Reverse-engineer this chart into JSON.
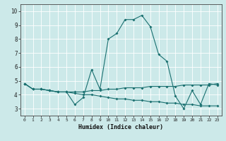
{
  "xlabel": "Humidex (Indice chaleur)",
  "x_ticks": [
    0,
    1,
    2,
    3,
    4,
    5,
    6,
    7,
    8,
    9,
    10,
    11,
    12,
    13,
    14,
    15,
    16,
    17,
    18,
    19,
    20,
    21,
    22,
    23
  ],
  "ylim": [
    2.5,
    10.5
  ],
  "xlim": [
    -0.5,
    23.5
  ],
  "background_color": "#cce9e9",
  "line_color": "#1a7070",
  "grid_color": "#ffffff",
  "lines": [
    {
      "x": [
        0,
        1,
        2,
        3,
        4,
        5,
        6,
        7,
        8,
        9,
        10,
        11,
        12,
        13,
        14,
        15,
        16,
        17,
        18,
        19,
        20,
        21,
        22,
        23
      ],
      "y": [
        4.8,
        4.4,
        4.4,
        4.3,
        4.2,
        4.2,
        3.3,
        3.8,
        5.8,
        4.4,
        8.0,
        8.4,
        9.4,
        9.4,
        9.7,
        8.9,
        6.9,
        6.4,
        3.9,
        3.0,
        4.3,
        3.3,
        4.8,
        4.7
      ]
    },
    {
      "x": [
        0,
        1,
        2,
        3,
        4,
        5,
        6,
        7,
        8,
        9,
        10,
        11,
        12,
        13,
        14,
        15,
        16,
        17,
        18,
        19,
        20,
        21,
        22,
        23
      ],
      "y": [
        4.8,
        4.4,
        4.4,
        4.3,
        4.2,
        4.2,
        4.2,
        4.2,
        4.3,
        4.3,
        4.4,
        4.4,
        4.5,
        4.5,
        4.5,
        4.6,
        4.6,
        4.6,
        4.6,
        4.7,
        4.7,
        4.7,
        4.7,
        4.8
      ]
    },
    {
      "x": [
        0,
        1,
        2,
        3,
        4,
        5,
        6,
        7,
        8,
        9,
        10,
        11,
        12,
        13,
        14,
        15,
        16,
        17,
        18,
        19,
        20,
        21,
        22,
        23
      ],
      "y": [
        4.8,
        4.4,
        4.4,
        4.3,
        4.2,
        4.2,
        4.1,
        4.0,
        4.0,
        3.9,
        3.8,
        3.7,
        3.7,
        3.6,
        3.6,
        3.5,
        3.5,
        3.4,
        3.4,
        3.3,
        3.3,
        3.2,
        3.2,
        3.2
      ]
    }
  ]
}
